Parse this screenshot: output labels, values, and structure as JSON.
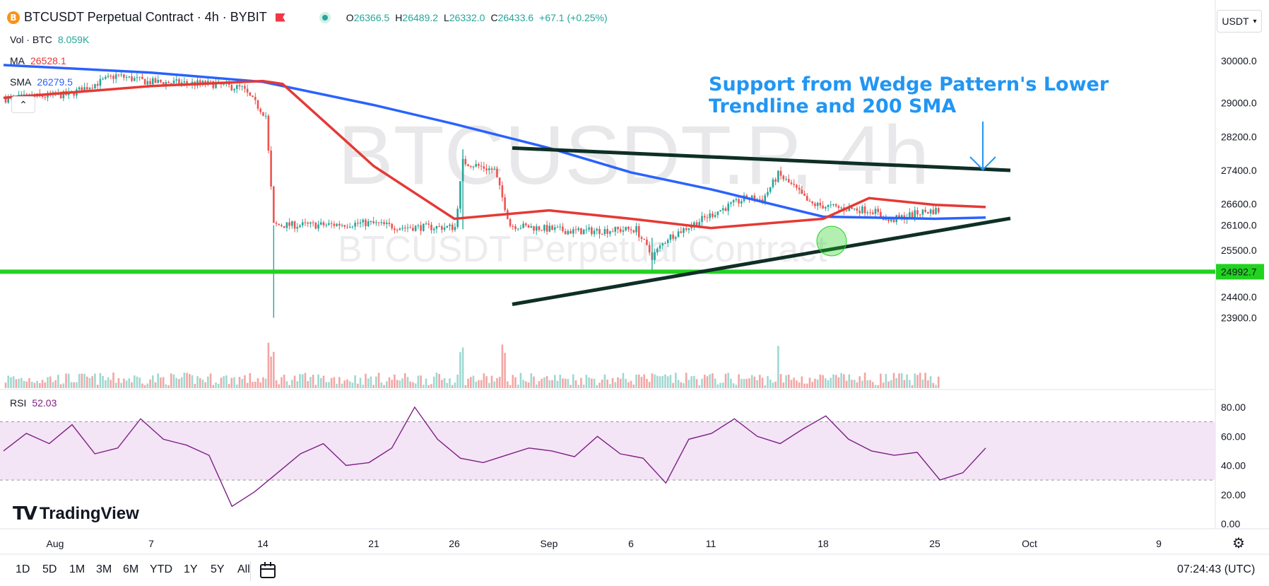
{
  "header": {
    "coin_icon": "B",
    "title": "BTCUSDT Perpetual Contract · 4h · BYBIT",
    "ohlc": {
      "o_label": "O",
      "o": "26366.5",
      "h_label": "H",
      "h": "26489.2",
      "l_label": "L",
      "l": "26332.0",
      "c_label": "C",
      "c": "26433.6",
      "change": "+67.1 (+0.25%)"
    },
    "currency": "USDT"
  },
  "legend": {
    "vol_label": "Vol · BTC",
    "vol_value": "8.059K",
    "ma_label": "MA",
    "ma_value": "26528.1",
    "sma_label": "SMA",
    "sma_value": "26279.5",
    "rsi_label": "RSI",
    "rsi_value": "52.03"
  },
  "watermark": {
    "big": "BTCUSDT.P, 4h",
    "small": "BTCUSDT Perpetual Contract"
  },
  "annotation": {
    "line1": "Support from Wedge Pattern's Lower",
    "line2": "Trendline and 200 SMA"
  },
  "footer": {
    "timeframes": [
      "1D",
      "5D",
      "1M",
      "3M",
      "6M",
      "YTD",
      "1Y",
      "5Y",
      "All"
    ],
    "clock": "07:24:43 (UTC)",
    "logo": "TradingView"
  },
  "colors": {
    "up": "#26a69a",
    "down": "#ef5350",
    "ma": "#e53935",
    "sma": "#2962ff",
    "support": "#22d21f",
    "trendline": "#0f2f26",
    "rsi": "#7e1f86",
    "annotation": "#2196f3"
  },
  "chart_data": [
    {
      "type": "candlestick",
      "title": "BTCUSDT Perpetual Contract · 4h · BYBIT",
      "x_axis": {
        "ticks": [
          "Aug",
          "7",
          "14",
          "21",
          "26",
          "Sep",
          "6",
          "11",
          "18",
          "25",
          "Oct",
          "9"
        ]
      },
      "y_axis": {
        "ticks": [
          30000,
          29000,
          28200,
          27400,
          26600,
          26100,
          25500,
          24400,
          23900
        ],
        "highlight_label": "24992.7",
        "ylim": [
          23750,
          30400
        ]
      },
      "series": [
        {
          "name": "MA",
          "value": 26528.1,
          "points": [
            [
              "Aug",
              29120
            ],
            [
              "7",
              29400
            ],
            [
              "14",
              29520
            ],
            [
              "14+",
              29450
            ],
            [
              "21",
              27500
            ],
            [
              "26",
              26250
            ],
            [
              "Sep",
              26450
            ],
            [
              "6",
              26250
            ],
            [
              "11",
              26030
            ],
            [
              "18",
              26250
            ],
            [
              "18+",
              26740
            ],
            [
              "25",
              26580
            ],
            [
              "Sep 28",
              26528
            ]
          ]
        },
        {
          "name": "SMA",
          "value": 26279.5,
          "points": [
            [
              "Aug",
              29900
            ],
            [
              "7",
              29720
            ],
            [
              "14",
              29500
            ],
            [
              "21",
              28950
            ],
            [
              "26",
              28500
            ],
            [
              "Sep",
              27930
            ],
            [
              "6",
              27350
            ],
            [
              "11",
              26950
            ],
            [
              "18",
              26300
            ],
            [
              "25",
              26250
            ],
            [
              "Sep 28",
              26280
            ]
          ]
        }
      ],
      "horizontal_lines": [
        {
          "value": 24992.7
        }
      ],
      "trendlines": [
        {
          "from": [
            "Aug 29",
            27930
          ],
          "to": [
            "Sep 30",
            27400
          ]
        },
        {
          "from": [
            "Aug 29",
            24220
          ],
          "to": [
            "Sep 30",
            26260
          ]
        }
      ],
      "volume": {
        "name": "Vol · BTC",
        "value": "8.059K"
      }
    },
    {
      "type": "line",
      "title": "RSI",
      "value": 52.03,
      "y_axis": {
        "ticks": [
          80,
          60,
          40,
          20,
          0
        ],
        "bands": [
          30,
          70
        ]
      },
      "series": [
        {
          "name": "RSI",
          "values": [
            50,
            62,
            55,
            68,
            48,
            52,
            72,
            58,
            54,
            47,
            12,
            22,
            35,
            48,
            55,
            40,
            42,
            52,
            80,
            58,
            45,
            42,
            47,
            52,
            50,
            46,
            60,
            48,
            45,
            28,
            58,
            62,
            72,
            60,
            55,
            65,
            74,
            58,
            50,
            47,
            49,
            30,
            35,
            52
          ]
        }
      ]
    }
  ]
}
